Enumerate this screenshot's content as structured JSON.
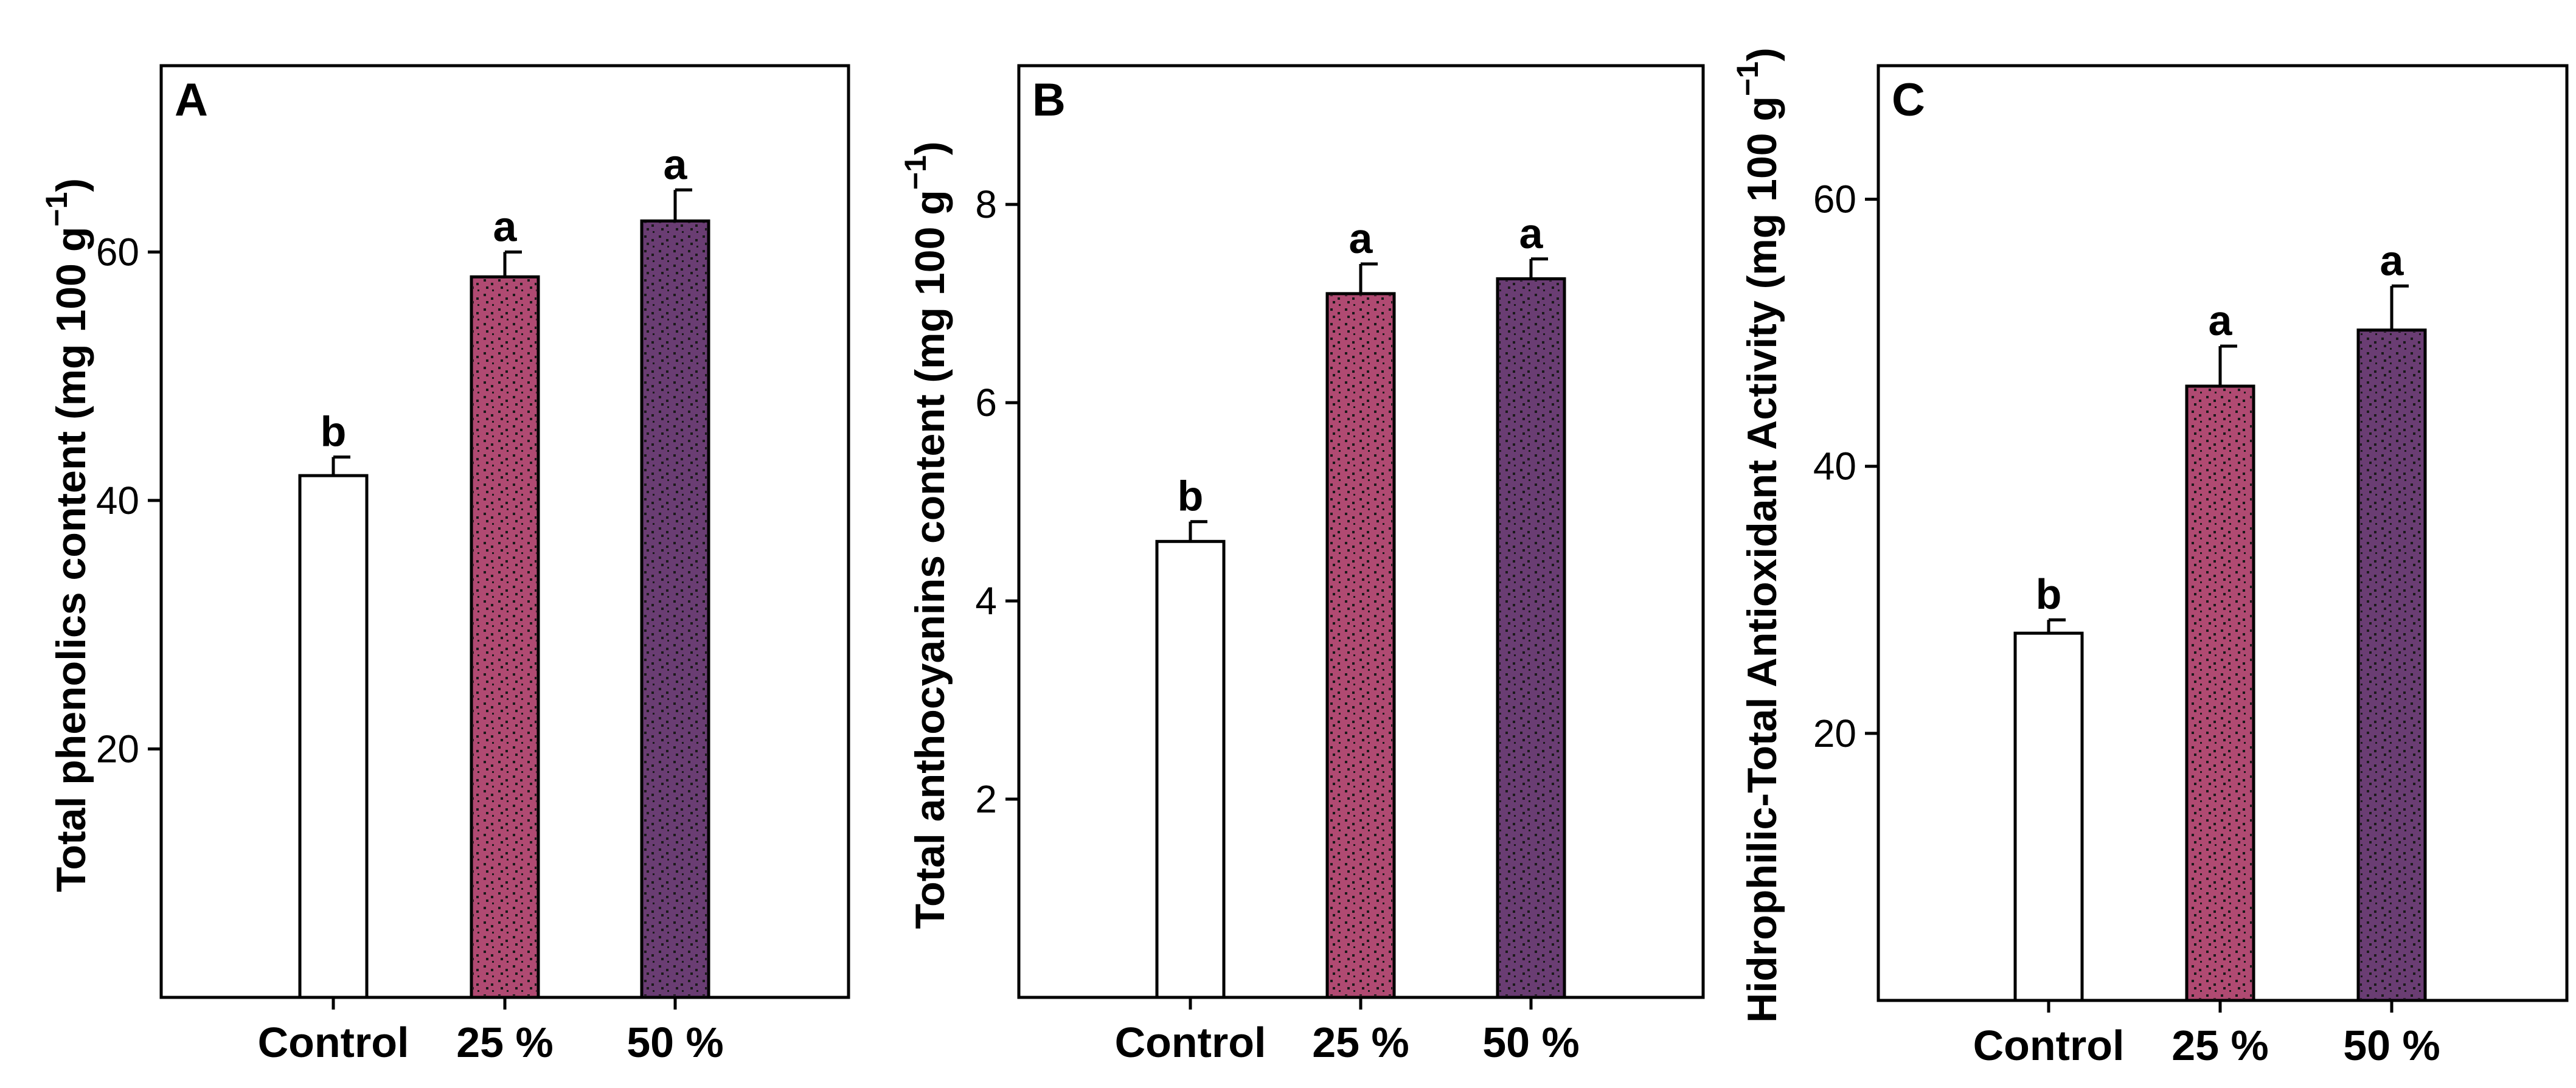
{
  "colors": {
    "control": "#ffffff",
    "p25": "#b04a72",
    "p50": "#6a3d73",
    "dots": "#1a1a1a"
  },
  "chart_data": [
    {
      "type": "bar",
      "panel": "A",
      "title": "",
      "xlabel": "",
      "ylabel": "Total phenolics content (mg 100 g",
      "ylabel_sup": "−1",
      "ylabel_close": ")",
      "categories": [
        "Control",
        "25 %",
        "50 %"
      ],
      "values": [
        42,
        58,
        62.5
      ],
      "errors": [
        1.5,
        2,
        2.5
      ],
      "significance": [
        "b",
        "a",
        "a"
      ],
      "ylim": [
        0,
        75
      ],
      "yticks": [
        20,
        40,
        60
      ],
      "ytick_labels": [
        "20",
        "40",
        "60"
      ]
    },
    {
      "type": "bar",
      "panel": "B",
      "title": "",
      "xlabel": "",
      "ylabel": "Total anthocyanins content (mg 100 g",
      "ylabel_sup": "−1",
      "ylabel_close": ")",
      "categories": [
        "Control",
        "25 %",
        "50 %"
      ],
      "values": [
        4.6,
        7.1,
        7.25
      ],
      "errors": [
        0.2,
        0.3,
        0.2
      ],
      "significance": [
        "b",
        "a",
        "a"
      ],
      "ylim": [
        0,
        9.4
      ],
      "yticks": [
        2,
        4,
        6,
        8
      ],
      "ytick_labels": [
        "2",
        "4",
        "6",
        "8"
      ]
    },
    {
      "type": "bar",
      "panel": "C",
      "title": "",
      "xlabel": "",
      "ylabel": "Hidrophilic-Total Antioxidant Activity (mg 100 g",
      "ylabel_sup": "−1",
      "ylabel_close": ")",
      "categories": [
        "Control",
        "25 %",
        "50 %"
      ],
      "values": [
        27.5,
        46,
        50.2
      ],
      "errors": [
        1,
        3,
        3.3
      ],
      "significance": [
        "b",
        "a",
        "a"
      ],
      "ylim": [
        0,
        70
      ],
      "yticks": [
        20,
        40,
        60
      ],
      "ytick_labels": [
        "20",
        "40",
        "60"
      ]
    }
  ]
}
